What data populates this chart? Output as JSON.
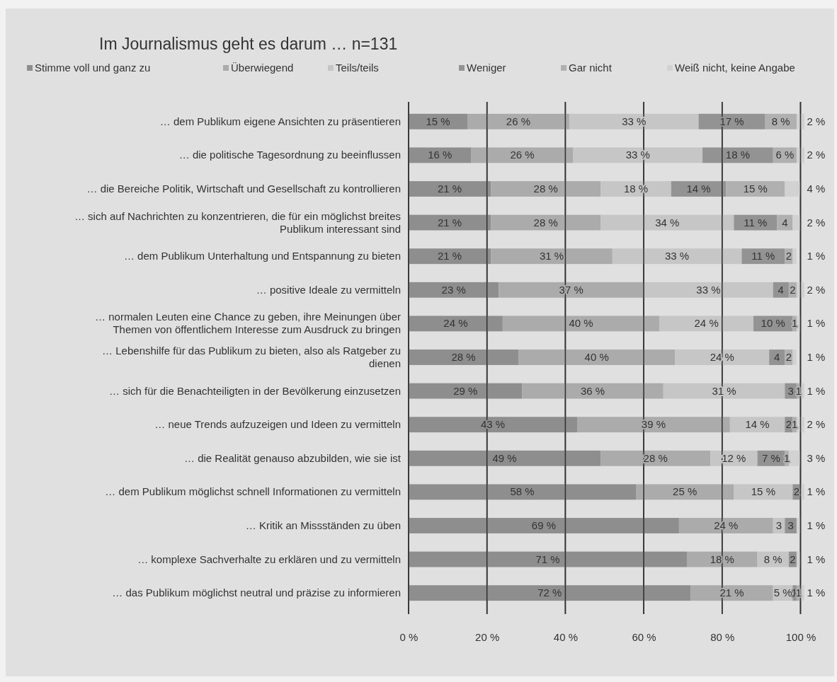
{
  "chart_data": {
    "type": "bar",
    "orientation": "horizontal",
    "stacked": true,
    "title": "Im Journalismus geht es darum … n=131",
    "categories": [
      "… dem Publikum eigene Ansichten zu präsentieren",
      "… die politische Tagesordnung zu beeinflussen",
      "… die Bereiche Politik, Wirtschaft und Gesellschaft zu kontrollieren",
      "… sich auf Nachrichten zu konzentrieren, die für ein möglichst breites Publikum interessant sind",
      "… dem Publikum Unterhaltung und Entspannung zu bieten",
      "… positive Ideale zu vermitteln",
      "… normalen Leuten eine Chance zu geben, ihre Meinungen über Themen von öffentlichem Interesse zum Ausdruck zu bringen",
      "… Lebenshilfe für das Publikum zu bieten, also als Ratgeber zu dienen",
      "… sich für die Benachteiligten in der Bevölkerung einzusetzen",
      "… neue Trends aufzuzeigen und Ideen zu vermitteln",
      "… die Realität genauso abzubilden, wie sie ist",
      "… dem Publikum möglichst schnell Informationen zu vermitteln",
      "… Kritik an Missständen zu üben",
      "… komplexe Sachverhalte zu erklären und zu vermitteln",
      "… das Publikum möglichst neutral und präzise zu informieren"
    ],
    "series": [
      {
        "name": "Stimme voll und ganz zu",
        "color": "#8e8e8e",
        "values": [
          15,
          16,
          21,
          21,
          21,
          23,
          24,
          28,
          29,
          43,
          49,
          58,
          69,
          71,
          72
        ],
        "value_labels": [
          "15 %",
          "16 %",
          "21 %",
          "21 %",
          "21 %",
          "23 %",
          "24 %",
          "28 %",
          "29 %",
          "43 %",
          "49 %",
          "58 %",
          "69 %",
          "71 %",
          "72 %"
        ]
      },
      {
        "name": "Überwiegend",
        "color": "#ababab",
        "values": [
          26,
          26,
          28,
          28,
          31,
          37,
          40,
          40,
          36,
          39,
          28,
          25,
          24,
          18,
          21
        ],
        "value_labels": [
          "26 %",
          "26 %",
          "28 %",
          "28 %",
          "31 %",
          "37 %",
          "40 %",
          "40 %",
          "36 %",
          "39 %",
          "28 %",
          "25 %",
          "24 %",
          "18 %",
          "21 %"
        ]
      },
      {
        "name": "Teils/teils",
        "color": "#c6c6c6",
        "values": [
          33,
          33,
          18,
          34,
          33,
          33,
          24,
          24,
          31,
          14,
          12,
          15,
          3,
          8,
          5
        ],
        "value_labels": [
          "33 %",
          "33 %",
          "18 %",
          "34 %",
          "33 %",
          "33 %",
          "24 %",
          "24 %",
          "31 %",
          "14 %",
          "12 %",
          "15 %",
          "3",
          "8 %",
          "5 %"
        ]
      },
      {
        "name": "Weniger",
        "color": "#939393",
        "values": [
          17,
          18,
          14,
          11,
          11,
          4,
          10,
          4,
          3,
          2,
          7,
          2,
          3,
          2,
          1
        ],
        "value_labels": [
          "17 %",
          "18 %",
          "14 %",
          "11 %",
          "11 %",
          "4",
          "10 %",
          "4",
          "3",
          "2",
          "7 %",
          "2",
          "3",
          "2",
          "1"
        ]
      },
      {
        "name": "Gar nicht",
        "color": "#b0b0b0",
        "values": [
          8,
          6,
          15,
          4,
          2,
          2,
          1,
          2,
          1,
          1,
          1,
          0,
          0,
          0,
          1
        ],
        "value_labels": [
          "8 %",
          "6 %",
          "15 %",
          "4",
          "2",
          "2",
          "1",
          "2",
          "1",
          "1",
          "1",
          null,
          null,
          null,
          "1"
        ]
      },
      {
        "name": "Weiß nicht, keine Angabe",
        "color": "#d2d2d2",
        "values": [
          2,
          2,
          4,
          2,
          1,
          2,
          1,
          1,
          1,
          2,
          3,
          1,
          1,
          1,
          1
        ],
        "value_labels": [
          "2 %",
          "2 %",
          "4 %",
          "2 %",
          "1 %",
          "2 %",
          "1 %",
          "1 %",
          "1 %",
          "2 %",
          "3 %",
          "1 %",
          "1 %",
          "1 %",
          "1 %"
        ]
      }
    ],
    "xlim": [
      0,
      101
    ],
    "xticks": [
      {
        "value": 0,
        "label": "0 %"
      },
      {
        "value": 20,
        "label": "20 %"
      },
      {
        "value": 40,
        "label": "40 %"
      },
      {
        "value": 60,
        "label": "60 %"
      },
      {
        "value": 80,
        "label": "80 %"
      },
      {
        "value": 100,
        "label": "100 %"
      }
    ],
    "grid": "x",
    "legend": "top"
  }
}
